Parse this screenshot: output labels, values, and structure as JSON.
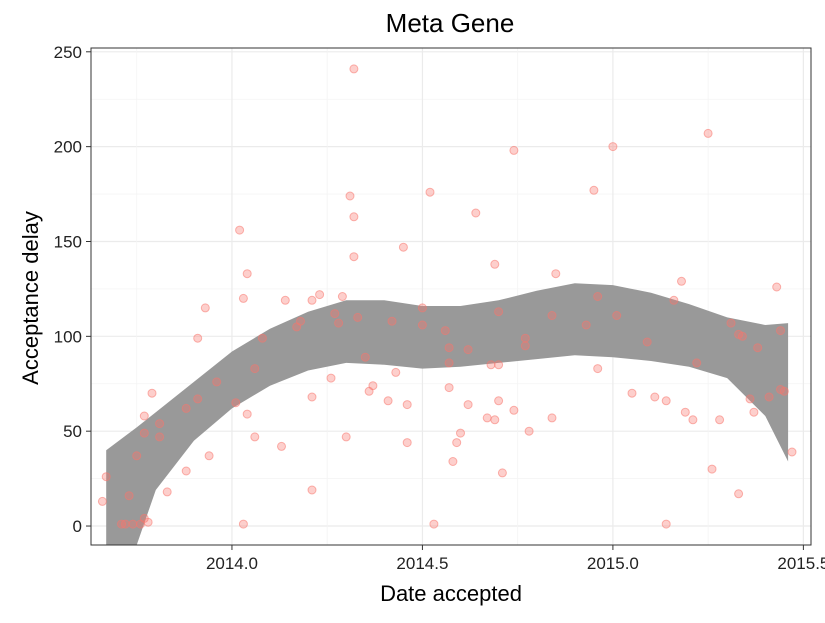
{
  "chart_data": {
    "type": "scatter",
    "title": "Meta Gene",
    "xlabel": "Date accepted",
    "ylabel": "Acceptance delay",
    "xlim": [
      2013.63,
      2015.52
    ],
    "ylim": [
      -10,
      252
    ],
    "x_ticks": [
      2014.0,
      2014.5,
      2015.0,
      2015.5
    ],
    "x_tick_labels": [
      "2014.0",
      "2014.5",
      "2015.0",
      "2015.5"
    ],
    "y_ticks": [
      0,
      50,
      100,
      150,
      200,
      250
    ],
    "y_tick_labels": [
      "0",
      "50",
      "100",
      "150",
      "200",
      "250"
    ],
    "grid": true,
    "legend": "none",
    "colors": {
      "points": "#f8766d",
      "ribbon": "#999999",
      "grid": "#ebebeb",
      "panel_border": "#333333"
    },
    "points": [
      [
        2013.66,
        13
      ],
      [
        2013.67,
        26
      ],
      [
        2013.71,
        1
      ],
      [
        2013.72,
        1
      ],
      [
        2013.73,
        16
      ],
      [
        2013.74,
        1
      ],
      [
        2013.75,
        37
      ],
      [
        2013.76,
        1
      ],
      [
        2013.77,
        4
      ],
      [
        2013.77,
        49
      ],
      [
        2013.77,
        58
      ],
      [
        2013.78,
        2
      ],
      [
        2013.79,
        70
      ],
      [
        2013.81,
        54
      ],
      [
        2013.81,
        47
      ],
      [
        2013.83,
        18
      ],
      [
        2013.88,
        29
      ],
      [
        2013.88,
        62
      ],
      [
        2013.91,
        67
      ],
      [
        2013.91,
        99
      ],
      [
        2013.93,
        115
      ],
      [
        2013.94,
        37
      ],
      [
        2013.96,
        76
      ],
      [
        2014.01,
        65
      ],
      [
        2014.02,
        156
      ],
      [
        2014.03,
        1
      ],
      [
        2014.03,
        120
      ],
      [
        2014.04,
        133
      ],
      [
        2014.04,
        59
      ],
      [
        2014.06,
        47
      ],
      [
        2014.06,
        83
      ],
      [
        2014.08,
        99
      ],
      [
        2014.13,
        42
      ],
      [
        2014.14,
        119
      ],
      [
        2014.17,
        105
      ],
      [
        2014.18,
        108
      ],
      [
        2014.21,
        19
      ],
      [
        2014.21,
        68
      ],
      [
        2014.21,
        119
      ],
      [
        2014.23,
        122
      ],
      [
        2014.26,
        78
      ],
      [
        2014.27,
        112
      ],
      [
        2014.28,
        107
      ],
      [
        2014.29,
        121
      ],
      [
        2014.3,
        47
      ],
      [
        2014.31,
        174
      ],
      [
        2014.32,
        241
      ],
      [
        2014.32,
        142
      ],
      [
        2014.32,
        163
      ],
      [
        2014.33,
        110
      ],
      [
        2014.35,
        89
      ],
      [
        2014.36,
        71
      ],
      [
        2014.37,
        74
      ],
      [
        2014.41,
        66
      ],
      [
        2014.42,
        108
      ],
      [
        2014.43,
        81
      ],
      [
        2014.45,
        147
      ],
      [
        2014.46,
        44
      ],
      [
        2014.46,
        64
      ],
      [
        2014.5,
        115
      ],
      [
        2014.5,
        106
      ],
      [
        2014.52,
        176
      ],
      [
        2014.53,
        1
      ],
      [
        2014.56,
        103
      ],
      [
        2014.57,
        73
      ],
      [
        2014.57,
        94
      ],
      [
        2014.57,
        86
      ],
      [
        2014.58,
        34
      ],
      [
        2014.59,
        44
      ],
      [
        2014.6,
        49
      ],
      [
        2014.62,
        93
      ],
      [
        2014.62,
        64
      ],
      [
        2014.64,
        165
      ],
      [
        2014.67,
        57
      ],
      [
        2014.68,
        85
      ],
      [
        2014.69,
        138
      ],
      [
        2014.69,
        56
      ],
      [
        2014.7,
        113
      ],
      [
        2014.7,
        85
      ],
      [
        2014.7,
        66
      ],
      [
        2014.71,
        28
      ],
      [
        2014.74,
        61
      ],
      [
        2014.74,
        198
      ],
      [
        2014.77,
        99
      ],
      [
        2014.77,
        95
      ],
      [
        2014.78,
        50
      ],
      [
        2014.84,
        57
      ],
      [
        2014.84,
        111
      ],
      [
        2014.85,
        133
      ],
      [
        2014.93,
        106
      ],
      [
        2014.95,
        177
      ],
      [
        2014.96,
        121
      ],
      [
        2014.96,
        83
      ],
      [
        2015.0,
        200
      ],
      [
        2015.01,
        111
      ],
      [
        2015.05,
        70
      ],
      [
        2015.09,
        97
      ],
      [
        2015.11,
        68
      ],
      [
        2015.14,
        1
      ],
      [
        2015.14,
        66
      ],
      [
        2015.16,
        119
      ],
      [
        2015.18,
        129
      ],
      [
        2015.19,
        60
      ],
      [
        2015.21,
        56
      ],
      [
        2015.22,
        86
      ],
      [
        2015.25,
        207
      ],
      [
        2015.26,
        30
      ],
      [
        2015.28,
        56
      ],
      [
        2015.31,
        107
      ],
      [
        2015.33,
        101
      ],
      [
        2015.33,
        17
      ],
      [
        2015.34,
        100
      ],
      [
        2015.36,
        67
      ],
      [
        2015.37,
        60
      ],
      [
        2015.38,
        94
      ],
      [
        2015.41,
        68
      ],
      [
        2015.43,
        126
      ],
      [
        2015.44,
        72
      ],
      [
        2015.44,
        103
      ],
      [
        2015.45,
        71
      ],
      [
        2015.47,
        39
      ]
    ],
    "smooth_band": {
      "x": [
        2013.67,
        2013.75,
        2013.8,
        2013.9,
        2014.0,
        2014.1,
        2014.2,
        2014.3,
        2014.4,
        2014.5,
        2014.6,
        2014.7,
        2014.8,
        2014.9,
        2015.0,
        2015.1,
        2015.2,
        2015.3,
        2015.4,
        2015.46
      ],
      "upper": [
        40,
        52,
        60,
        76,
        92,
        104,
        113,
        119,
        119,
        116,
        116,
        119,
        124,
        128,
        127,
        123,
        117,
        110,
        106,
        107
      ],
      "lower": [
        -10,
        -10,
        19,
        45,
        62,
        74,
        82,
        86,
        85,
        83,
        84,
        86,
        88,
        90,
        89,
        87,
        84,
        78,
        58,
        34
      ]
    }
  }
}
